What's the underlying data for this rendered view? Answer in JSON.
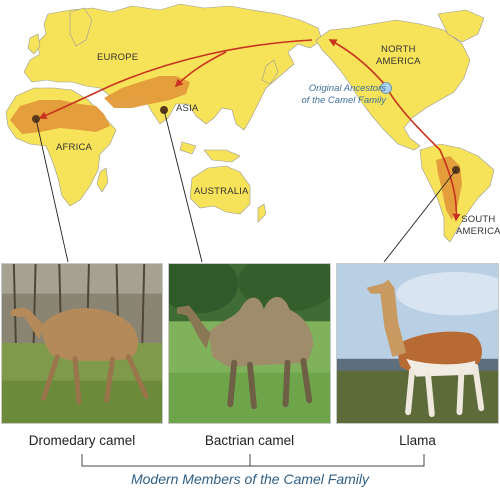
{
  "map": {
    "regions": {
      "europe": "EUROPE",
      "asia": "ASIA",
      "africa": "AFRICA",
      "australia": "AUSTRALIA",
      "north_america_line1": "NORTH",
      "north_america_line2": "AMERICA",
      "south_america_line1": "SOUTH",
      "south_america_line2": "AMERICA"
    },
    "ancestors_line1": "Original Ancestors",
    "ancestors_line2": "of the Camel Family",
    "colors": {
      "land": "#f7e35a",
      "range": "#e39a3a",
      "arrow": "#c8321f",
      "ancestor_dot": "#a9d3ef"
    }
  },
  "photos": [
    {
      "caption": "Dromedary camel"
    },
    {
      "caption": "Bactrian camel"
    },
    {
      "caption": "Llama"
    }
  ],
  "family_label": "Modern Members of the Camel Family"
}
